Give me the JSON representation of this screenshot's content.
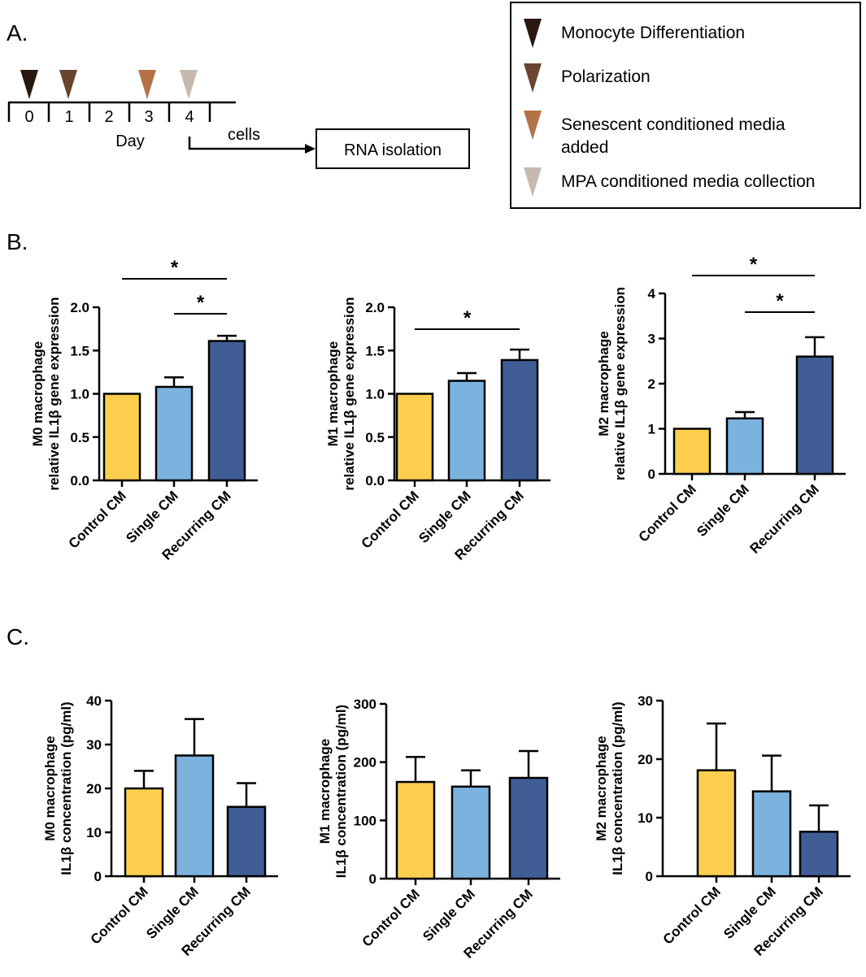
{
  "panel_a": {
    "label": "A.",
    "days": [
      "0",
      "1",
      "2",
      "3",
      "4"
    ],
    "day_label": "Day",
    "arrow_label": "cells",
    "box_label": "RNA isolation",
    "colors": [
      "#2a1710",
      "#6b4430",
      "#b47248",
      "#c8b9ae"
    ]
  },
  "legend": [
    {
      "label": "Monocyte Differentiation",
      "color": "#2a1710"
    },
    {
      "label": "Polarization",
      "color": "#6b4430"
    },
    {
      "label": "Senescent conditioned media",
      "label2": "added",
      "color": "#b47248"
    },
    {
      "label": "MPA conditioned media collection",
      "color": "#c8b9ae"
    }
  ],
  "panel_b_label": "B.",
  "panel_c_label": "C.",
  "colors": {
    "control": "#fecf4f",
    "single": "#7cb2de",
    "recurring": "#405d96"
  },
  "chart_data": [
    {
      "type": "bar",
      "panel": "B",
      "ylabel_line1": "M0 macrophage",
      "ylabel_line2": "relative IL1β gene expression",
      "categories": [
        "Control CM",
        "Single CM",
        "Recurring CM"
      ],
      "values": [
        1.0,
        1.08,
        1.61
      ],
      "errors": [
        0,
        0.11,
        0.06
      ],
      "ylim": [
        0,
        2.0
      ],
      "yticks": [
        "0.0",
        "0.5",
        "1.0",
        "1.5",
        "2.0"
      ],
      "significance": [
        {
          "from": 0,
          "to": 2,
          "label": "*"
        },
        {
          "from": 1,
          "to": 2,
          "label": "*"
        }
      ]
    },
    {
      "type": "bar",
      "panel": "B",
      "ylabel_line1": "M1 macrophage",
      "ylabel_line2": "relative IL1β gene expression",
      "categories": [
        "Control CM",
        "Single CM",
        "Recurring CM"
      ],
      "values": [
        1.0,
        1.15,
        1.39
      ],
      "errors": [
        0,
        0.09,
        0.12
      ],
      "ylim": [
        0,
        2.0
      ],
      "yticks": [
        "0.0",
        "0.5",
        "1.0",
        "1.5",
        "2.0"
      ],
      "significance": [
        {
          "from": 0,
          "to": 2,
          "label": "*"
        }
      ]
    },
    {
      "type": "bar",
      "panel": "B",
      "ylabel_line1": "M2 macrophage",
      "ylabel_line2": "relative IL1β gene expression",
      "categories": [
        "Control CM",
        "Single CM",
        "Recurring CM"
      ],
      "values": [
        1.0,
        1.23,
        2.6
      ],
      "errors": [
        0,
        0.14,
        0.43
      ],
      "ylim": [
        0,
        4
      ],
      "yticks": [
        "0",
        "1",
        "2",
        "3",
        "4"
      ],
      "significance": [
        {
          "from": 0,
          "to": 2,
          "label": "*"
        },
        {
          "from": 1,
          "to": 2,
          "label": "*"
        }
      ]
    },
    {
      "type": "bar",
      "panel": "C",
      "ylabel_line1": "M0 macrophage",
      "ylabel_line2": "IL1β concentration (pg/ml)",
      "categories": [
        "Control CM",
        "Single CM",
        "Recurring CM"
      ],
      "values": [
        20,
        27.5,
        15.8
      ],
      "errors": [
        4,
        8.3,
        5.4
      ],
      "ylim": [
        0,
        40
      ],
      "yticks": [
        "0",
        "10",
        "20",
        "30",
        "40"
      ],
      "significance": []
    },
    {
      "type": "bar",
      "panel": "C",
      "ylabel_line1": "M1 macrophage",
      "ylabel_line2": "IL1β concentration (pg/ml)",
      "categories": [
        "Control CM",
        "Single CM",
        "Recurring CM"
      ],
      "values": [
        166,
        158,
        173
      ],
      "errors": [
        43,
        28,
        46
      ],
      "ylim": [
        0,
        300
      ],
      "yticks": [
        "0",
        "100",
        "200",
        "300"
      ],
      "significance": []
    },
    {
      "type": "bar",
      "panel": "C",
      "ylabel_line1": "M2 macrophage",
      "ylabel_line2": "IL1β concentration (pg/ml)",
      "categories": [
        "Control CM",
        "Single CM",
        "Recurring CM"
      ],
      "values": [
        18.1,
        14.5,
        7.6
      ],
      "errors": [
        8.0,
        6.1,
        4.5
      ],
      "ylim": [
        0,
        30
      ],
      "yticks": [
        "0",
        "10",
        "20",
        "30"
      ],
      "significance": []
    }
  ]
}
